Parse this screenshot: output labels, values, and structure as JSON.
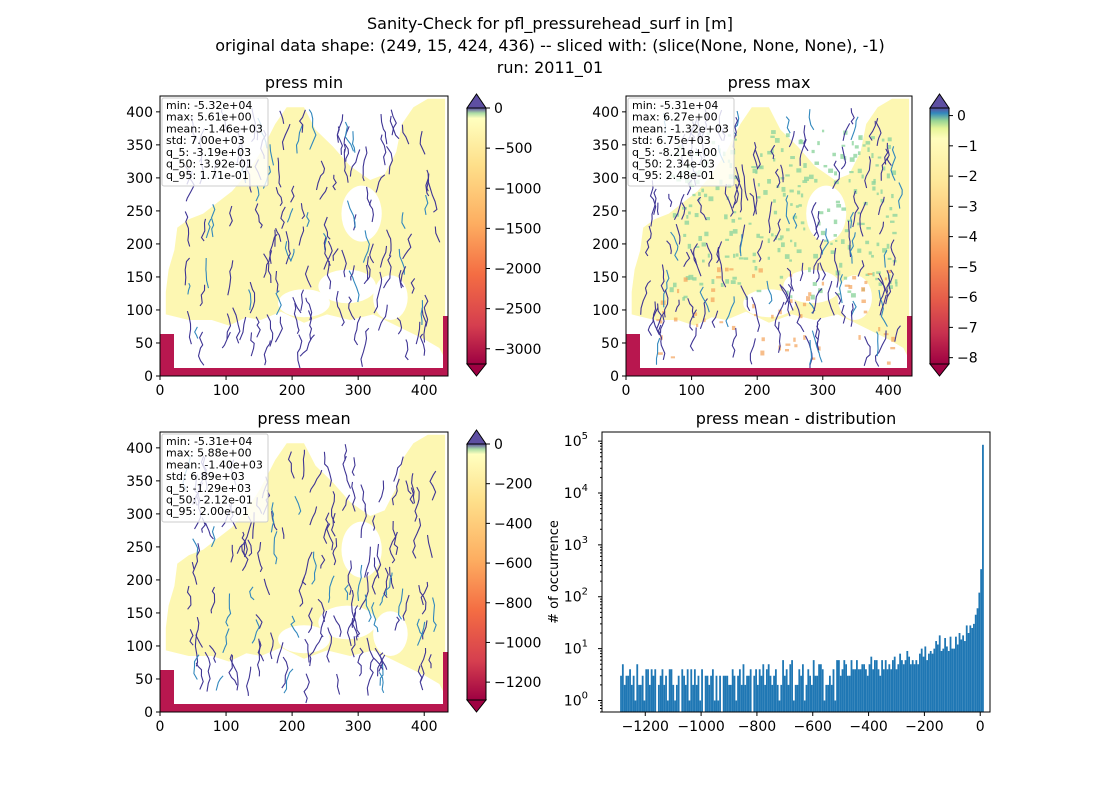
{
  "suptitle": [
    "Sanity-Check for pfl_pressurehead_surf in [m]",
    "original data shape: (249, 15, 424, 436) -- sliced with: (slice(None, None, None), -1)",
    "run: 2011_01"
  ],
  "colors": {
    "land": "#fdf7b2",
    "river": "#3f3594",
    "river_alt": "#3288bd",
    "green": "#8fd49f",
    "low": "#b8174f",
    "orange": "#f4a35a",
    "hist_bar": "#1f77b4"
  },
  "chart_data": [
    {
      "type": "heatmap",
      "title": "press min",
      "xticks": [
        "0",
        "100",
        "200",
        "300",
        "400"
      ],
      "yticks": [
        "0",
        "50",
        "100",
        "150",
        "200",
        "250",
        "300",
        "350",
        "400"
      ],
      "xlim": [
        0,
        436
      ],
      "ylim": [
        0,
        424
      ],
      "stats": [
        "min: -5.32e+04",
        "max: 5.61e+00",
        "mean: -1.46e+03",
        "std: 7.00e+03",
        "q_5: -3.19e+03",
        "q_50: -3.92e-01",
        "q_95: 1.71e-01"
      ],
      "colorbar": {
        "ticks": [
          "0",
          "−500",
          "−1000",
          "−1500",
          "−2000",
          "−2500",
          "−3000"
        ],
        "values": [
          0,
          -500,
          -1000,
          -1500,
          -2000,
          -2500,
          -3000
        ],
        "vmin": -3190,
        "vmax": 0,
        "extend": "both"
      }
    },
    {
      "type": "heatmap",
      "title": "press max",
      "xticks": [
        "0",
        "100",
        "200",
        "300",
        "400"
      ],
      "yticks": [
        "0",
        "50",
        "100",
        "150",
        "200",
        "250",
        "300",
        "350",
        "400"
      ],
      "xlim": [
        0,
        436
      ],
      "ylim": [
        0,
        424
      ],
      "stats": [
        "min: -5.31e+04",
        "max: 6.27e+00",
        "mean: -1.32e+03",
        "std: 6.75e+03",
        "q_5: -8.21e+00",
        "q_50: 2.34e-03",
        "q_95: 2.48e-01"
      ],
      "colorbar": {
        "ticks": [
          "0",
          "−1",
          "−2",
          "−3",
          "−4",
          "−5",
          "−6",
          "−7",
          "−8"
        ],
        "values": [
          0,
          -1,
          -2,
          -3,
          -4,
          -5,
          -6,
          -7,
          -8
        ],
        "vmin": -8.21,
        "vmax": 0.25,
        "extend": "both"
      }
    },
    {
      "type": "heatmap",
      "title": "press mean",
      "xticks": [
        "0",
        "100",
        "200",
        "300",
        "400"
      ],
      "yticks": [
        "0",
        "50",
        "100",
        "150",
        "200",
        "250",
        "300",
        "350",
        "400"
      ],
      "xlim": [
        0,
        436
      ],
      "ylim": [
        0,
        424
      ],
      "stats": [
        "min: -5.31e+04",
        "max: 5.88e+00",
        "mean: -1.40e+03",
        "std: 6.89e+03",
        "q_5: -1.29e+03",
        "q_50: -2.12e-01",
        "q_95: 2.00e-01"
      ],
      "colorbar": {
        "ticks": [
          "0",
          "−200",
          "−400",
          "−600",
          "−800",
          "−1000",
          "−1200"
        ],
        "values": [
          0,
          -200,
          -400,
          -600,
          -800,
          -1000,
          -1200
        ],
        "vmin": -1290,
        "vmax": 0,
        "extend": "both"
      }
    },
    {
      "type": "bar",
      "title": "press mean - distribution",
      "ylabel": "# of occurrence",
      "xlim": [
        -1355,
        35
      ],
      "yscale": "log",
      "ylim": [
        0.6,
        150000
      ],
      "xticks": {
        "values": [
          -1200,
          -1000,
          -800,
          -600,
          -400,
          -200,
          0
        ],
        "labels": [
          "−1200",
          "−1000",
          "−800",
          "−600",
          "−400",
          "−200",
          "0"
        ]
      },
      "yticks": {
        "values": [
          1,
          10,
          100,
          1000,
          10000,
          100000
        ],
        "labels": [
          "10",
          "10",
          "10",
          "10",
          "10",
          "10"
        ],
        "exponents": [
          "0",
          "1",
          "2",
          "3",
          "4",
          "5"
        ]
      },
      "bin_width": 6.45,
      "bins_start": -1290,
      "values": [
        3,
        5,
        2,
        3,
        3,
        4,
        2,
        3,
        1,
        5,
        2,
        2,
        3,
        1,
        4,
        4,
        2,
        4,
        3,
        4,
        0,
        2,
        3,
        4,
        2,
        3,
        1,
        4,
        4,
        2,
        1,
        2,
        3,
        0,
        4,
        3,
        2,
        4,
        1,
        4,
        2,
        4,
        2,
        3,
        1,
        4,
        0,
        3,
        3,
        2,
        3,
        4,
        1,
        3,
        1,
        3,
        0,
        3,
        3,
        3,
        2,
        2,
        4,
        3,
        1,
        3,
        4,
        2,
        5,
        2,
        3,
        3,
        4,
        0,
        3,
        4,
        2,
        4,
        3,
        5,
        2,
        4,
        5,
        3,
        2,
        3,
        4,
        2,
        1,
        2,
        6,
        3,
        4,
        2,
        5,
        6,
        1,
        2,
        2,
        4,
        3,
        5,
        1,
        2,
        4,
        3,
        2,
        6,
        3,
        3,
        5,
        5,
        4,
        1,
        2,
        2,
        3,
        2,
        4,
        1,
        6,
        6,
        3,
        4,
        6,
        5,
        3,
        3,
        6,
        4,
        4,
        6,
        4,
        4,
        5,
        5,
        4,
        3,
        5,
        7,
        4,
        6,
        6,
        4,
        3,
        6,
        4,
        6,
        4,
        5,
        4,
        6,
        7,
        4,
        5,
        8,
        6,
        5,
        6,
        9,
        7,
        5,
        6,
        5,
        6,
        5,
        8,
        10,
        7,
        11,
        6,
        8,
        9,
        8,
        10,
        14,
        12,
        18,
        9,
        10,
        16,
        11,
        9,
        17,
        10,
        10,
        17,
        12,
        20,
        15,
        18,
        14,
        28,
        20,
        28,
        25,
        30,
        45,
        60,
        120,
        340,
        85000
      ]
    }
  ]
}
